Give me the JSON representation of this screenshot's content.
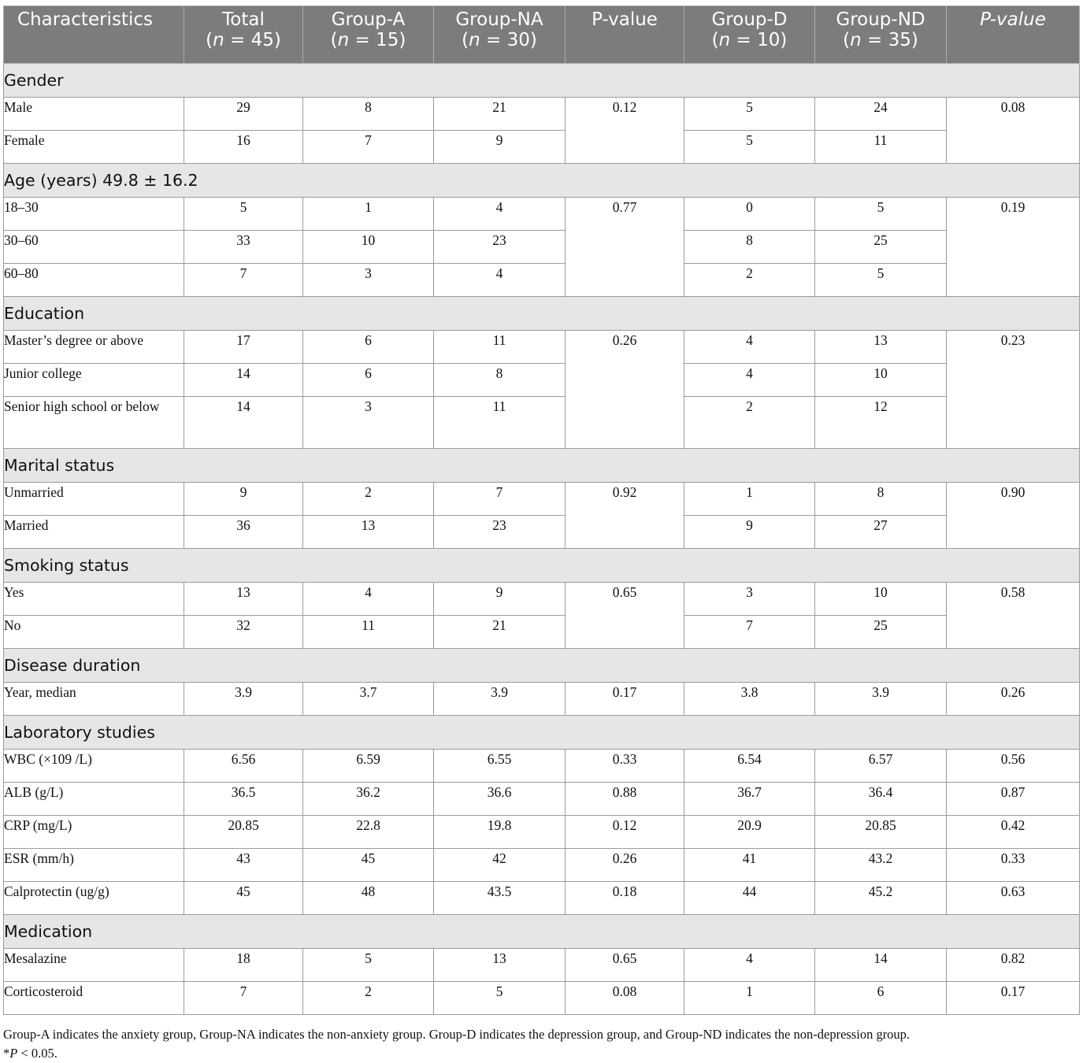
{
  "table": {
    "headers": [
      {
        "main": "Characteristics",
        "sub": ""
      },
      {
        "main": "Total",
        "sub": "(n = 45)"
      },
      {
        "main": "Group-A",
        "sub": "(n = 15)"
      },
      {
        "main": "Group-NA",
        "sub": "(n = 30)"
      },
      {
        "main": "P-value",
        "sub": ""
      },
      {
        "main": "Group-D",
        "sub": "(n = 10)"
      },
      {
        "main": "Group-ND",
        "sub": "(n = 35)"
      },
      {
        "main": "P-value",
        "sub": ""
      }
    ],
    "sections": [
      {
        "title": "Gender",
        "p1": "0.12",
        "p2": "0.08",
        "rows": [
          {
            "label": "Male",
            "total": "29",
            "a": "8",
            "na": "21",
            "d": "5",
            "nd": "24"
          },
          {
            "label": "Female",
            "total": "16",
            "a": "7",
            "na": "9",
            "d": "5",
            "nd": "11"
          }
        ]
      },
      {
        "title": "Age (years) 49.8 ± 16.2",
        "p1": "0.77",
        "p2": "0.19",
        "rows": [
          {
            "label": "18–30",
            "total": "5",
            "a": "1",
            "na": "4",
            "d": "0",
            "nd": "5"
          },
          {
            "label": "30–60",
            "total": "33",
            "a": "10",
            "na": "23",
            "d": "8",
            "nd": "25"
          },
          {
            "label": "60–80",
            "total": "7",
            "a": "3",
            "na": "4",
            "d": "2",
            "nd": "5"
          }
        ]
      },
      {
        "title": "Education",
        "p1": "0.26",
        "p2": "0.23",
        "rows": [
          {
            "label": "Master’s degree or above",
            "total": "17",
            "a": "6",
            "na": "11",
            "d": "4",
            "nd": "13"
          },
          {
            "label": "Junior college",
            "total": "14",
            "a": "6",
            "na": "8",
            "d": "4",
            "nd": "10"
          },
          {
            "label": "Senior high school or below",
            "total": "14",
            "a": "3",
            "na": "11",
            "d": "2",
            "nd": "12"
          }
        ]
      },
      {
        "title": "Marital status",
        "p1": "0.92",
        "p2": "0.90",
        "rows": [
          {
            "label": "Unmarried",
            "total": "9",
            "a": "2",
            "na": "7",
            "d": "1",
            "nd": "8"
          },
          {
            "label": "Married",
            "total": "36",
            "a": "13",
            "na": "23",
            "d": "9",
            "nd": "27"
          }
        ]
      },
      {
        "title": "Smoking status",
        "p1": "0.65",
        "p2": "0.58",
        "rows": [
          {
            "label": "Yes",
            "total": "13",
            "a": "4",
            "na": "9",
            "d": "3",
            "nd": "10"
          },
          {
            "label": "No",
            "total": "32",
            "a": "11",
            "na": "21",
            "d": "7",
            "nd": "25"
          }
        ]
      },
      {
        "title": "Disease duration",
        "p1": null,
        "p2": null,
        "rows": [
          {
            "label": "Year, median",
            "total": "3.9",
            "a": "3.7",
            "na": "3.9",
            "p1": "0.17",
            "d": "3.8",
            "nd": "3.9",
            "p2": "0.26"
          }
        ]
      },
      {
        "title": "Laboratory studies",
        "p1": null,
        "p2": null,
        "rows": [
          {
            "label": "WBC (×109 /L)",
            "total": "6.56",
            "a": "6.59",
            "na": "6.55",
            "p1": "0.33",
            "d": "6.54",
            "nd": "6.57",
            "p2": "0.56"
          },
          {
            "label": "ALB (g/L)",
            "total": "36.5",
            "a": "36.2",
            "na": "36.6",
            "p1": "0.88",
            "d": "36.7",
            "nd": "36.4",
            "p2": "0.87"
          },
          {
            "label": "CRP (mg/L)",
            "total": "20.85",
            "a": "22.8",
            "na": "19.8",
            "p1": "0.12",
            "d": "20.9",
            "nd": "20.85",
            "p2": "0.42"
          },
          {
            "label": "ESR (mm/h)",
            "total": "43",
            "a": "45",
            "na": "42",
            "p1": "0.26",
            "d": "41",
            "nd": "43.2",
            "p2": "0.33"
          },
          {
            "label": "Calprotectin (ug/g)",
            "total": "45",
            "a": "48",
            "na": "43.5",
            "p1": "0.18",
            "d": "44",
            "nd": "45.2",
            "p2": "0.63"
          }
        ]
      },
      {
        "title": "Medication",
        "p1": null,
        "p2": null,
        "rows": [
          {
            "label": "Mesalazine",
            "total": "18",
            "a": "5",
            "na": "13",
            "p1": "0.65",
            "d": "4",
            "nd": "14",
            "p2": "0.82"
          },
          {
            "label": "Corticosteroid",
            "total": "7",
            "a": "2",
            "na": "5",
            "p1": "0.08",
            "d": "1",
            "nd": "6",
            "p2": "0.17"
          }
        ]
      }
    ]
  },
  "footnote": {
    "line1": "Group-A indicates the anxiety group, Group-NA indicates the non-anxiety group. Group-D indicates the depression group, and Group-ND indicates the non-depression group.",
    "line2": "*P < 0.05."
  }
}
